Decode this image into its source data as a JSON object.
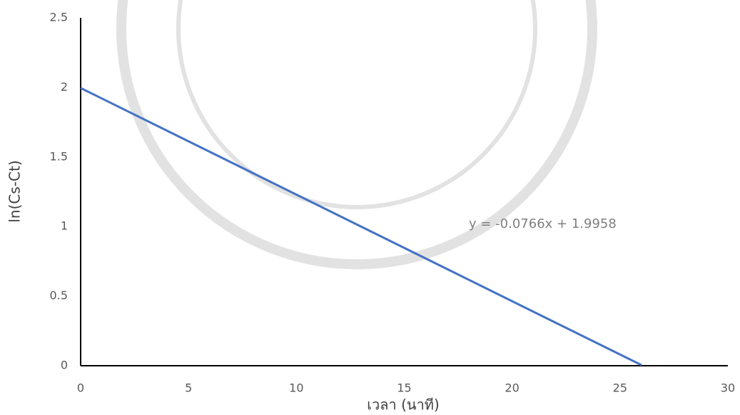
{
  "chart_data": {
    "type": "line",
    "x_label": "เวลา (นาที)",
    "y_label": "ln(Cs-Ct)",
    "annotation": "y = -0.0766x + 1.9958",
    "x": [
      0,
      26
    ],
    "series": [
      {
        "name": "ln(Cs-Ct)",
        "color": "#4472c4",
        "values": [
          1.9958,
          0.0042
        ]
      }
    ],
    "xlim": [
      0,
      30
    ],
    "xticks": [
      0,
      5,
      10,
      15,
      20,
      25,
      30
    ],
    "ylim": [
      0,
      2.5
    ],
    "yticks": [
      0,
      0.5,
      1,
      1.5,
      2,
      2.5
    ],
    "grid": false
  }
}
